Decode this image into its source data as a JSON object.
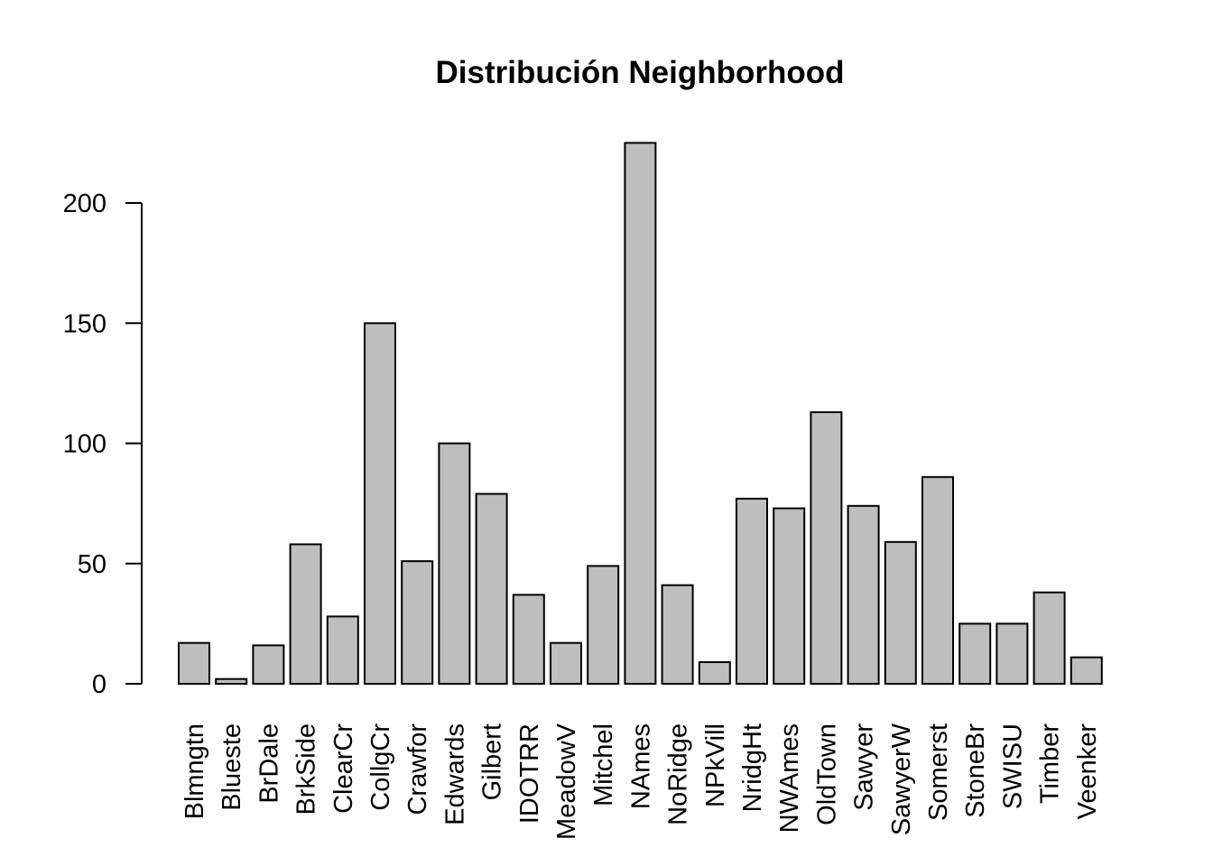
{
  "chart_data": {
    "type": "bar",
    "title": "Distribución Neighborhood",
    "xlabel": "",
    "ylabel": "",
    "categories": [
      "Blmngtn",
      "Blueste",
      "BrDale",
      "BrkSide",
      "ClearCr",
      "CollgCr",
      "Crawfor",
      "Edwards",
      "Gilbert",
      "IDOTRR",
      "MeadowV",
      "Mitchel",
      "NAmes",
      "NoRidge",
      "NPkVill",
      "NridgHt",
      "NWAmes",
      "OldTown",
      "Sawyer",
      "SawyerW",
      "Somerst",
      "StoneBr",
      "SWISU",
      "Timber",
      "Veenker"
    ],
    "values": [
      17,
      2,
      16,
      58,
      28,
      150,
      51,
      100,
      79,
      37,
      17,
      49,
      225,
      41,
      9,
      77,
      73,
      113,
      74,
      59,
      86,
      25,
      25,
      38,
      11
    ],
    "ylim": [
      0,
      225
    ],
    "yticks": [
      0,
      50,
      100,
      150,
      200
    ],
    "grid": false,
    "legend": "none",
    "bar_color": "#bebebe",
    "bar_border_color": "#000000"
  }
}
